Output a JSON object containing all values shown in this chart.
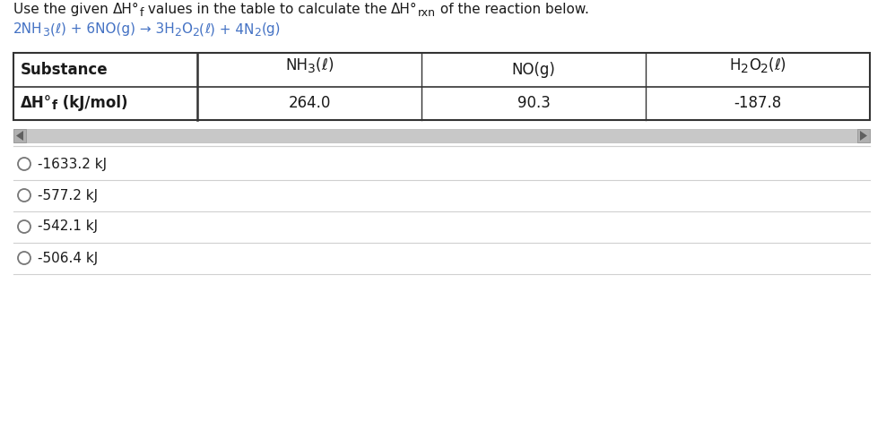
{
  "bg_color": "#ffffff",
  "text_color": "#1a1a1a",
  "link_color": "#4472C4",
  "scrollbar_color": "#c8c8c8",
  "scrollbar_arrow_color": "#a0a0a0",
  "table_border_color": "#333333",
  "divider_color": "#d0d0d0",
  "table_header_font": 12,
  "table_value_font": 12,
  "title_font": 11,
  "reaction_font": 11,
  "choice_font": 11,
  "choices": [
    "-1633.2 kJ",
    "-577.2 kJ",
    "-542.1 kJ",
    "-506.4 kJ"
  ],
  "table_values": [
    "264.0",
    "90.3",
    "-187.8"
  ]
}
